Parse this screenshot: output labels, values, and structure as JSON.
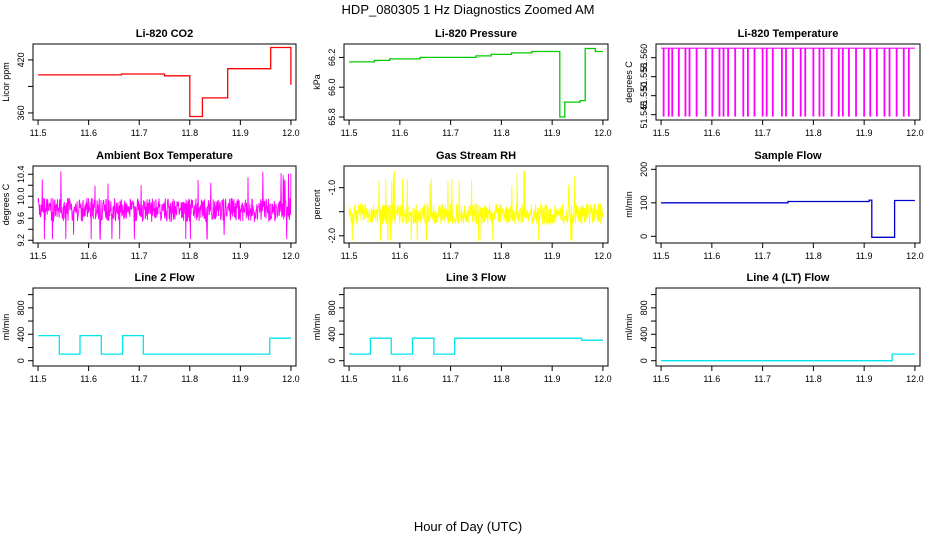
{
  "figure": {
    "title": "HDP_080305  1 Hz Diagnostics Zoomed AM",
    "xlabel": "Hour of Day (UTC)"
  },
  "chart_data": [
    {
      "type": "line",
      "title": "Li-820 CO2",
      "ylabel": "Licor ppm",
      "color": "#ff0000",
      "xlim": [
        11.49,
        12.01
      ],
      "ylim": [
        352,
        438
      ],
      "xticks": [
        "11.5",
        "11.6",
        "11.7",
        "11.8",
        "11.9",
        "12.0"
      ],
      "yticks": [
        360,
        390,
        420
      ],
      "ytick_labels": [
        "360",
        "",
        "420"
      ],
      "step": true,
      "x": [
        11.5,
        11.66,
        11.665,
        11.75,
        11.8,
        11.825,
        11.875,
        11.96,
        12.0
      ],
      "y": [
        403,
        403,
        404,
        402,
        356,
        377,
        410,
        434,
        392
      ]
    },
    {
      "type": "line",
      "title": "Li-820 Pressure",
      "ylabel": "kPa",
      "color": "#00cc00",
      "xlim": [
        11.49,
        12.01
      ],
      "ylim": [
        65.78,
        66.29
      ],
      "xticks": [
        "11.5",
        "11.6",
        "11.7",
        "11.8",
        "11.9",
        "12.0"
      ],
      "yticks": [
        65.8,
        66.0,
        66.2
      ],
      "ytick_labels": [
        "65.8",
        "66.0",
        "66.2"
      ],
      "step": true,
      "x": [
        11.5,
        11.55,
        11.58,
        11.64,
        11.75,
        11.78,
        11.82,
        11.86,
        11.915,
        11.925,
        11.955,
        11.965,
        11.985,
        12.0
      ],
      "y": [
        66.17,
        66.18,
        66.19,
        66.2,
        66.21,
        66.22,
        66.23,
        66.24,
        65.8,
        65.9,
        65.91,
        66.26,
        66.24,
        66.24
      ]
    },
    {
      "type": "line",
      "title": "Li-820 Temperature",
      "ylabel": "degrees C",
      "color": "#ff00ff",
      "xlim": [
        11.49,
        12.01
      ],
      "ylim": [
        51.5436,
        51.5636
      ],
      "xticks": [
        "11.5",
        "11.6",
        "11.7",
        "11.8",
        "11.9",
        "12.0"
      ],
      "yticks": [
        51.545,
        51.55,
        51.555,
        51.56
      ],
      "ytick_labels": [
        "51.545",
        "51.550",
        "51.555",
        "51.560"
      ],
      "baseline": 51.5625,
      "spike_low": 51.5445,
      "spikes": [
        11.505,
        11.515,
        11.522,
        11.535,
        11.548,
        11.556,
        11.57,
        11.588,
        11.601,
        11.615,
        11.623,
        11.632,
        11.646,
        11.662,
        11.671,
        11.684,
        11.7,
        11.708,
        11.72,
        11.738,
        11.746,
        11.76,
        11.775,
        11.784,
        11.8,
        11.812,
        11.82,
        11.836,
        11.85,
        11.858,
        11.87,
        11.884,
        11.9,
        11.912,
        11.925,
        11.94,
        11.95,
        11.964,
        11.978,
        11.988
      ]
    },
    {
      "type": "line",
      "title": "Ambient Box Temperature",
      "ylabel": "degrees C",
      "color": "#ff00ff",
      "xlim": [
        11.49,
        12.01
      ],
      "ylim": [
        9.15,
        10.55
      ],
      "xticks": [
        "11.5",
        "11.6",
        "11.7",
        "11.8",
        "11.9",
        "12.0"
      ],
      "yticks": [
        9.2,
        9.4,
        9.6,
        9.8,
        10.0,
        10.2,
        10.4
      ],
      "ytick_labels": [
        "9.2",
        "",
        "9.6",
        "",
        "10.0",
        "",
        "10.4"
      ],
      "noise": {
        "center": 9.75,
        "spread": 0.22,
        "min": 9.22,
        "max": 10.48
      }
    },
    {
      "type": "line",
      "title": "Gas Stream RH",
      "ylabel": "percent",
      "color": "#ffff00",
      "xlim": [
        11.49,
        12.01
      ],
      "ylim": [
        -2.15,
        -0.55
      ],
      "xticks": [
        "11.5",
        "11.6",
        "11.7",
        "11.8",
        "11.9",
        "12.0"
      ],
      "yticks": [
        -2.0,
        -1.5,
        -1.0
      ],
      "ytick_labels": [
        "-2.0",
        "",
        "-1.0"
      ],
      "noise": {
        "center": -1.55,
        "spread": 0.22,
        "min": -2.1,
        "max": -0.6
      }
    },
    {
      "type": "line",
      "title": "Sample Flow",
      "ylabel": "ml/min",
      "color": "#0000cc",
      "xlim": [
        11.49,
        12.01
      ],
      "ylim": [
        -20,
        210
      ],
      "xticks": [
        "11.5",
        "11.6",
        "11.7",
        "11.8",
        "11.9",
        "12.0"
      ],
      "yticks": [
        0,
        100,
        200
      ],
      "ytick_labels": [
        "0",
        "100",
        "200"
      ],
      "step": true,
      "x": [
        11.5,
        11.75,
        11.91,
        11.915,
        11.955,
        11.96,
        12.0
      ],
      "y": [
        100,
        104,
        108,
        -3,
        -3,
        107,
        107
      ]
    },
    {
      "type": "line",
      "title": "Line 2 Flow",
      "ylabel": "ml/min",
      "color": "#00e5ee",
      "xlim": [
        11.49,
        12.01
      ],
      "ylim": [
        -80,
        1100
      ],
      "xticks": [
        "11.5",
        "11.6",
        "11.7",
        "11.8",
        "11.9",
        "12.0"
      ],
      "yticks": [
        0,
        200,
        400,
        600,
        800,
        1000
      ],
      "ytick_labels": [
        "0",
        "",
        "400",
        "",
        "800",
        ""
      ],
      "step": true,
      "x": [
        11.5,
        11.542,
        11.583,
        11.625,
        11.667,
        11.708,
        11.958,
        12.0
      ],
      "y": [
        380,
        100,
        380,
        100,
        380,
        100,
        340,
        340
      ]
    },
    {
      "type": "line",
      "title": "Line 3 Flow",
      "ylabel": "ml/min",
      "color": "#00e5ee",
      "xlim": [
        11.49,
        12.01
      ],
      "ylim": [
        -80,
        1100
      ],
      "xticks": [
        "11.5",
        "11.6",
        "11.7",
        "11.8",
        "11.9",
        "12.0"
      ],
      "yticks": [
        0,
        200,
        400,
        600,
        800,
        1000
      ],
      "ytick_labels": [
        "0",
        "",
        "400",
        "",
        "800",
        ""
      ],
      "step": true,
      "x": [
        11.5,
        11.542,
        11.583,
        11.625,
        11.667,
        11.708,
        11.958,
        12.0
      ],
      "y": [
        100,
        340,
        100,
        340,
        100,
        340,
        310,
        310
      ]
    },
    {
      "type": "line",
      "title": "Line 4 (LT) Flow",
      "ylabel": "ml/min",
      "color": "#00e5ee",
      "xlim": [
        11.49,
        12.01
      ],
      "ylim": [
        -80,
        1100
      ],
      "xticks": [
        "11.5",
        "11.6",
        "11.7",
        "11.8",
        "11.9",
        "12.0"
      ],
      "yticks": [
        0,
        200,
        400,
        600,
        800,
        1000
      ],
      "ytick_labels": [
        "0",
        "",
        "400",
        "",
        "800",
        ""
      ],
      "step": true,
      "x": [
        11.5,
        11.955,
        12.0
      ],
      "y": [
        0,
        100,
        100
      ]
    }
  ]
}
